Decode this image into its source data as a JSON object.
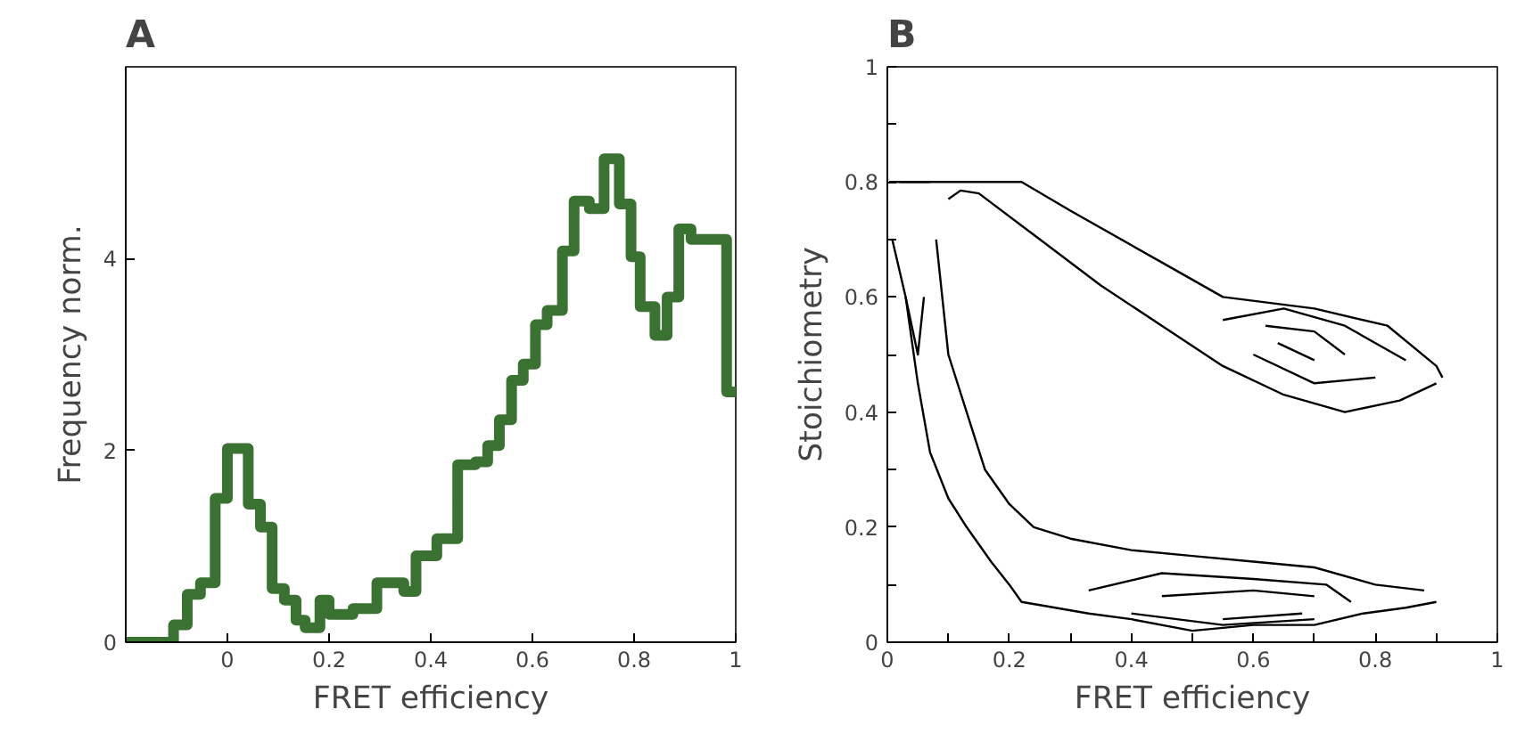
{
  "chart_data": [
    {
      "type": "histogram",
      "title": "A",
      "xlabel": "FRET efficiency",
      "ylabel": "Frequency norm.",
      "color": "#3a7232",
      "bins": [
        -0.2,
        -0.106,
        -0.079,
        -0.053,
        -0.024,
        0,
        0.041,
        0.065,
        0.088,
        0.112,
        0.135,
        0.153,
        0.182,
        0.2,
        0.247,
        0.294,
        0.347,
        0.371,
        0.412,
        0.453,
        0.488,
        0.512,
        0.535,
        0.559,
        0.582,
        0.606,
        0.629,
        0.659,
        0.682,
        0.712,
        0.741,
        0.771,
        0.794,
        0.812,
        0.841,
        0.865,
        0.888,
        0.912,
        0.929,
        0.982,
        1.0
      ],
      "values": [
        0,
        0.18,
        0.5,
        0.62,
        1.5,
        2.02,
        1.44,
        1.2,
        0.56,
        0.44,
        0.23,
        0.15,
        0.44,
        0.29,
        0.35,
        0.62,
        0.53,
        0.9,
        1.08,
        1.85,
        1.88,
        2.05,
        2.32,
        2.73,
        2.9,
        3.31,
        3.46,
        4.08,
        4.6,
        4.52,
        5.04,
        4.57,
        4.02,
        3.5,
        3.2,
        3.6,
        4.31,
        4.2,
        4.2,
        2.61
      ],
      "xlim": [
        -0.2,
        1.0
      ],
      "ylim": [
        0,
        6
      ],
      "xticks": [
        0,
        0.2,
        0.4,
        0.6,
        0.8,
        1
      ],
      "yticks": [
        0,
        2,
        4
      ],
      "grid": false
    },
    {
      "type": "line",
      "title": "B",
      "xlabel": "FRET efficiency",
      "ylabel": "Stoichiometry",
      "xlim": [
        0,
        1
      ],
      "ylim": [
        0,
        1
      ],
      "xticks": [
        0,
        {
          "value": 0.1,
          "label": null
        },
        0.2,
        {
          "value": 0.3,
          "label": null
        },
        0.4,
        {
          "value": 0.5,
          "label": null
        },
        0.6,
        {
          "value": 0.7,
          "label": null
        },
        0.8,
        {
          "value": 0.9,
          "label": null
        },
        1
      ],
      "yticks": [
        0,
        {
          "value": 0.1,
          "label": null
        },
        0.2,
        {
          "value": 0.3,
          "label": null
        },
        0.4,
        {
          "value": 0.5,
          "label": null
        },
        0.6,
        {
          "value": 0.7,
          "label": null
        },
        0.8,
        {
          "value": 0.9,
          "label": null
        },
        1
      ],
      "grid": false,
      "marker": "none",
      "line_style": "solid",
      "series": [
        {
          "color": "#000000",
          "x": [
            0.008,
            0.03,
            0.05,
            0.07,
            0.1,
            0.13,
            0.17,
            0.2,
            0.22,
            0.33,
            0.4,
            0.5,
            0.6,
            0.7,
            0.78,
            0.85,
            0.9
          ],
          "values": [
            0.7,
            0.6,
            0.45,
            0.33,
            0.25,
            0.2,
            0.14,
            0.1,
            0.07,
            0.05,
            0.04,
            0.02,
            0.03,
            0.03,
            0.05,
            0.06,
            0.07
          ]
        },
        {
          "color": "#000000",
          "x": [
            0.08,
            0.09,
            0.1,
            0.13,
            0.16,
            0.2,
            0.24,
            0.3,
            0.4,
            0.5,
            0.6,
            0.7,
            0.8,
            0.88
          ],
          "values": [
            0.7,
            0.6,
            0.5,
            0.4,
            0.3,
            0.24,
            0.2,
            0.18,
            0.16,
            0.15,
            0.14,
            0.13,
            0.1,
            0.09
          ]
        },
        {
          "color": "#000000",
          "x": [
            0.1,
            0.12,
            0.15,
            0.25,
            0.35,
            0.45,
            0.55,
            0.65,
            0.75,
            0.84,
            0.9
          ],
          "values": [
            0.77,
            0.785,
            0.78,
            0.7,
            0.62,
            0.55,
            0.48,
            0.43,
            0.4,
            0.42,
            0.45
          ]
        },
        {
          "color": "#000000",
          "x": [
            0.003,
            0.22,
            0.3,
            0.45,
            0.55,
            0.7,
            0.82,
            0.9,
            0.91
          ],
          "values": [
            0.8,
            0.8,
            0.75,
            0.66,
            0.6,
            0.58,
            0.55,
            0.48,
            0.46
          ]
        },
        {
          "color": "#000000",
          "x": [
            0.55,
            0.65,
            0.75,
            0.85
          ],
          "values": [
            0.56,
            0.58,
            0.55,
            0.49
          ]
        },
        {
          "color": "#000000",
          "x": [
            0.6,
            0.7,
            0.8
          ],
          "values": [
            0.5,
            0.45,
            0.46
          ]
        },
        {
          "color": "#000000",
          "x": [
            0.62,
            0.7,
            0.75
          ],
          "values": [
            0.55,
            0.54,
            0.5
          ]
        },
        {
          "color": "#000000",
          "x": [
            0.64,
            0.7
          ],
          "values": [
            0.52,
            0.49
          ]
        },
        {
          "color": "#000000",
          "x": [
            0.33,
            0.45,
            0.6,
            0.72,
            0.76
          ],
          "values": [
            0.09,
            0.12,
            0.11,
            0.1,
            0.07
          ]
        },
        {
          "color": "#000000",
          "x": [
            0.4,
            0.55,
            0.7
          ],
          "values": [
            0.05,
            0.03,
            0.04
          ]
        },
        {
          "color": "#000000",
          "x": [
            0.45,
            0.6,
            0.7
          ],
          "values": [
            0.08,
            0.09,
            0.08
          ]
        },
        {
          "color": "#000000",
          "x": [
            0.55,
            0.68
          ],
          "values": [
            0.04,
            0.05
          ]
        },
        {
          "color": "#000000",
          "x": [
            0.02,
            0.07
          ],
          "values": [
            0.8,
            0.8
          ]
        },
        {
          "color": "#000000",
          "x": [
            0.03,
            0.05,
            0.06
          ],
          "values": [
            0.6,
            0.5,
            0.6
          ]
        }
      ]
    }
  ]
}
